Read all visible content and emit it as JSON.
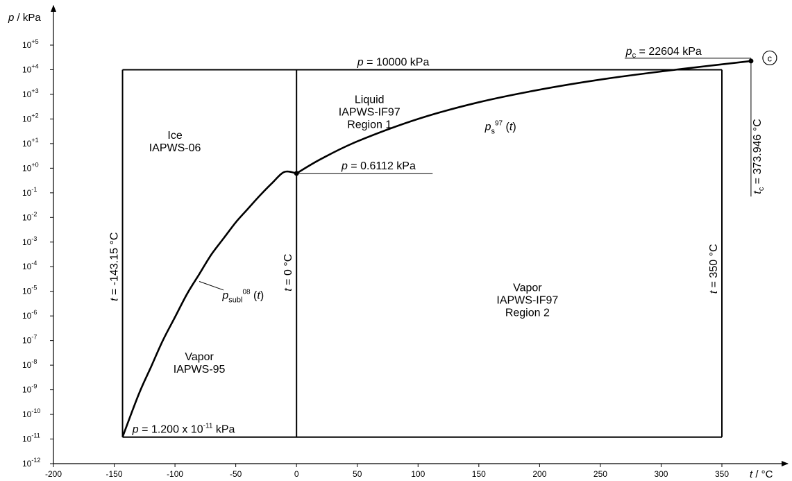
{
  "chart_data": {
    "type": "line",
    "title": "",
    "xlabel": "t / °C",
    "ylabel": "p / kPa",
    "xlim": [
      -200,
      375
    ],
    "ylim_log10": [
      -12,
      5
    ],
    "y_scale": "log",
    "grid": false,
    "x_ticks": [
      -200,
      -150,
      -100,
      -50,
      0,
      50,
      100,
      150,
      200,
      250,
      300,
      350
    ],
    "y_ticks": [
      {
        "exp": -12,
        "label": "10-12"
      },
      {
        "exp": -11,
        "label": "10-11"
      },
      {
        "exp": -10,
        "label": "10-10"
      },
      {
        "exp": -9,
        "label": "10-9"
      },
      {
        "exp": -8,
        "label": "10-8"
      },
      {
        "exp": -7,
        "label": "10-7"
      },
      {
        "exp": -6,
        "label": "10-6"
      },
      {
        "exp": -5,
        "label": "10-5"
      },
      {
        "exp": -4,
        "label": "10-4"
      },
      {
        "exp": -3,
        "label": "10-3"
      },
      {
        "exp": -2,
        "label": "10-2"
      },
      {
        "exp": -1,
        "label": "10-1"
      },
      {
        "exp": 0,
        "label": "10+0"
      },
      {
        "exp": 1,
        "label": "10+1"
      },
      {
        "exp": 2,
        "label": "10+2"
      },
      {
        "exp": 3,
        "label": "10+3"
      },
      {
        "exp": 4,
        "label": "10+4"
      },
      {
        "exp": 5,
        "label": "10+5"
      }
    ],
    "series": [
      {
        "name": "p_subl^08(t)",
        "x": [
          -143.15,
          -130,
          -120,
          -110,
          -100,
          -90,
          -80,
          -70,
          -60,
          -50,
          -40,
          -30,
          -20,
          -10,
          0
        ],
        "log10_p": [
          -10.92,
          -9.2,
          -8.1,
          -7.0,
          -6.05,
          -5.1,
          -4.3,
          -3.5,
          -2.85,
          -2.2,
          -1.65,
          -1.1,
          -0.6,
          -0.15,
          -0.21
        ]
      },
      {
        "name": "p_s^97(t)",
        "x": [
          0.01,
          20,
          50,
          100,
          150,
          200,
          250,
          300,
          350,
          373.946
        ],
        "log10_p": [
          -0.21,
          0.37,
          1.09,
          2.0,
          2.68,
          3.19,
          3.6,
          3.93,
          4.22,
          4.354
        ]
      }
    ],
    "boundaries": [
      {
        "label": "p = 10000 kPa",
        "value": 10000
      },
      {
        "label": "p = 1.200 x 10-11 kPa",
        "value": 1.2e-11
      },
      {
        "label": "t = 0 °C",
        "value": 0
      },
      {
        "label": "t = -143.15 °C",
        "value": -143.15
      },
      {
        "label": "t = 350 °C",
        "value": 350
      }
    ],
    "regions": [
      {
        "line1": "Ice",
        "line2": "IAPWS-06",
        "line3": ""
      },
      {
        "line1": "Liquid",
        "line2": "IAPWS-IF97",
        "line3": "Region 1"
      },
      {
        "line1": "Vapor",
        "line2": "IAPWS-95",
        "line3": ""
      },
      {
        "line1": "Vapor",
        "line2": "IAPWS-IF97",
        "line3": "Region 2"
      }
    ],
    "annotations": {
      "triple_point": "p = 0.6112 kPa",
      "critical_pressure": "pc = 22604 kPa",
      "critical_temperature": "tc = 373.946 °C",
      "critical_marker": "c",
      "sat_curve_label": "ps97 (t)",
      "subl_curve_label": "psubl08 (t)"
    }
  }
}
